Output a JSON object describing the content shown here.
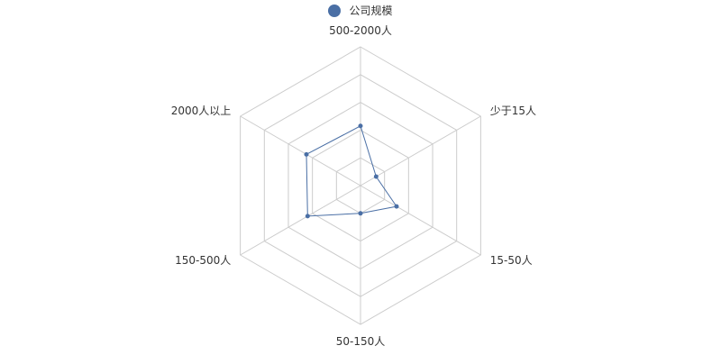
{
  "chart_data": {
    "type": "radar",
    "legend": {
      "position": "top-center",
      "entries": [
        "公司规模"
      ]
    },
    "indicators": [
      "500-2000人",
      "少于15人",
      "15-50人",
      "50-150人",
      "150-500人",
      "2000人以上"
    ],
    "max": 100,
    "split_number": 5,
    "shape": "polygon",
    "series": [
      {
        "name": "公司规模",
        "values": [
          43,
          13,
          30,
          20,
          44,
          45
        ]
      }
    ],
    "colors": {
      "series": "#4a6fa5",
      "grid": "#cccccc",
      "text": "#333333"
    }
  }
}
